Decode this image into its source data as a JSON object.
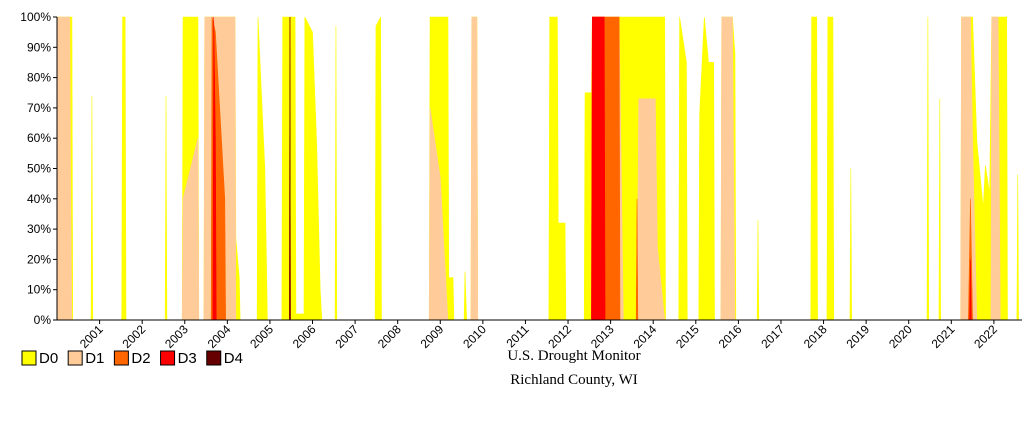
{
  "chart_data": {
    "type": "area",
    "title": "U.S. Drought Monitor",
    "subtitle": "Richland County, WI",
    "xlim": [
      2000,
      2022.66
    ],
    "xticks": [
      2001,
      2002,
      2003,
      2004,
      2005,
      2006,
      2007,
      2008,
      2009,
      2010,
      2011,
      2012,
      2013,
      2014,
      2015,
      2016,
      2017,
      2018,
      2019,
      2020,
      2021,
      2022
    ],
    "ylim": [
      0,
      100
    ],
    "yticks": [
      {
        "value": 0,
        "label": "0%"
      },
      {
        "value": 10,
        "label": "10%"
      },
      {
        "value": 20,
        "label": "20%"
      },
      {
        "value": 30,
        "label": "30%"
      },
      {
        "value": 40,
        "label": "40%"
      },
      {
        "value": 50,
        "label": "50%"
      },
      {
        "value": 60,
        "label": "60%"
      },
      {
        "value": 70,
        "label": "70%"
      },
      {
        "value": 80,
        "label": "80%"
      },
      {
        "value": 90,
        "label": "90%"
      },
      {
        "value": 100,
        "label": "100%"
      }
    ],
    "legend": "bottom-left",
    "series": [
      {
        "name": "D0",
        "color": "#ffff00",
        "x": [
          2000.0,
          2000.35,
          2000.37,
          2000.8,
          2000.82,
          2000.84,
          2001.52,
          2001.54,
          2001.6,
          2001.62,
          2002.54,
          2002.56,
          2002.58,
          2002.94,
          2002.96,
          2003.31,
          2003.33,
          2003.45,
          2003.47,
          2004.18,
          2004.2,
          2004.28,
          2004.3,
          2004.7,
          2004.72,
          2004.88,
          2004.92,
          2004.94,
          2005.28,
          2005.3,
          2005.59,
          2005.61,
          2005.8,
          2005.82,
          2006.0,
          2006.1,
          2006.18,
          2006.22,
          2006.53,
          2006.55,
          2006.57,
          2007.47,
          2007.49,
          2007.6,
          2007.62,
          2008.74,
          2008.76,
          2009.18,
          2009.2,
          2009.3,
          2009.32,
          2009.56,
          2009.58,
          2009.62,
          2009.72,
          2009.74,
          2009.86,
          2009.88,
          2011.55,
          2011.57,
          2011.75,
          2011.77,
          2011.93,
          2011.95,
          2012.38,
          2012.4,
          2012.55,
          2012.57,
          2014.27,
          2014.29,
          2014.6,
          2014.62,
          2014.78,
          2014.8,
          2015.07,
          2015.09,
          2015.2,
          2015.3,
          2015.42,
          2015.44,
          2015.59,
          2015.61,
          2015.86,
          2015.92,
          2015.94,
          2016.44,
          2016.46,
          2016.48,
          2017.7,
          2017.72,
          2017.84,
          2017.86,
          2018.08,
          2018.1,
          2018.22,
          2018.24,
          2018.62,
          2018.64,
          2018.66,
          2020.43,
          2020.45,
          2020.47,
          2020.71,
          2020.73,
          2020.75,
          2021.22,
          2021.24,
          2021.5,
          2021.6,
          2021.75,
          2021.8,
          2021.9,
          2021.95,
          2022.3,
          2022.32,
          2022.54,
          2022.56,
          2022.58,
          2022.66
        ],
        "values": [
          100,
          100,
          0,
          0,
          74,
          0,
          0,
          100,
          100,
          0,
          0,
          74,
          0,
          0,
          100,
          100,
          0,
          0,
          100,
          100,
          27,
          14,
          0,
          0,
          100,
          50,
          18,
          0,
          0,
          100,
          100,
          2,
          2,
          100,
          95,
          57,
          10,
          0,
          0,
          97,
          0,
          0,
          97,
          100,
          0,
          0,
          100,
          100,
          14,
          14,
          0,
          0,
          16,
          0,
          0,
          100,
          100,
          0,
          0,
          100,
          100,
          32,
          32,
          0,
          0,
          75,
          75,
          100,
          100,
          0,
          0,
          100,
          85,
          0,
          0,
          68,
          100,
          85,
          85,
          0,
          0,
          100,
          100,
          88,
          0,
          0,
          33,
          0,
          0,
          100,
          100,
          0,
          0,
          100,
          100,
          0,
          0,
          50,
          0,
          0,
          100,
          0,
          0,
          73,
          0,
          0,
          100,
          100,
          59,
          37,
          51,
          42,
          100,
          100,
          0,
          0,
          48,
          0,
          0
        ]
      },
      {
        "name": "D1",
        "color": "#ffcc99",
        "x": [
          2000.0,
          2000.3,
          2000.32,
          2000.35,
          2002.94,
          2002.96,
          2003.31,
          2003.33,
          2003.45,
          2003.47,
          2004.18,
          2004.2,
          2008.74,
          2008.76,
          2009.0,
          2009.18,
          2009.72,
          2009.74,
          2009.86,
          2009.88,
          2012.55,
          2012.57,
          2013.2,
          2013.3,
          2013.62,
          2013.66,
          2014.05,
          2014.1,
          2014.27,
          2015.59,
          2015.61,
          2015.86,
          2015.92,
          2021.22,
          2021.24,
          2021.45,
          2021.5,
          2021.6,
          2021.93,
          2021.95,
          2022.1,
          2022.15
        ],
        "values": [
          100,
          100,
          45,
          0,
          0,
          40,
          60,
          0,
          0,
          100,
          100,
          0,
          0,
          70,
          47,
          0,
          0,
          100,
          100,
          0,
          0,
          100,
          100,
          0,
          0,
          73,
          73,
          24,
          0,
          0,
          100,
          100,
          0,
          0,
          100,
          100,
          60,
          0,
          0,
          100,
          100,
          0
        ]
      },
      {
        "name": "D2",
        "color": "#ff6600",
        "x": [
          2003.62,
          2003.64,
          2003.72,
          2003.94,
          2003.96,
          2005.46,
          2005.47,
          2005.48,
          2012.55,
          2012.57,
          2013.2,
          2013.22,
          2013.6,
          2013.62,
          2013.64,
          2021.4,
          2021.45,
          2021.5
        ],
        "values": [
          0,
          100,
          95,
          40,
          0,
          0,
          100,
          0,
          0,
          100,
          100,
          0,
          0,
          40,
          0,
          0,
          40,
          0
        ]
      },
      {
        "name": "D3",
        "color": "#ff0000",
        "x": [
          2003.66,
          2003.68,
          2003.72,
          2003.74,
          2005.46,
          2005.47,
          2005.48,
          2012.55,
          2012.57,
          2012.85,
          2012.87,
          2021.43,
          2021.45,
          2021.47
        ],
        "values": [
          0,
          100,
          60,
          0,
          0,
          100,
          0,
          0,
          100,
          100,
          0,
          0,
          20,
          0
        ]
      },
      {
        "name": "D4",
        "color": "#660000",
        "x": [
          2005.46,
          2005.47,
          2005.48
        ],
        "values": [
          0,
          100,
          0
        ]
      }
    ]
  }
}
